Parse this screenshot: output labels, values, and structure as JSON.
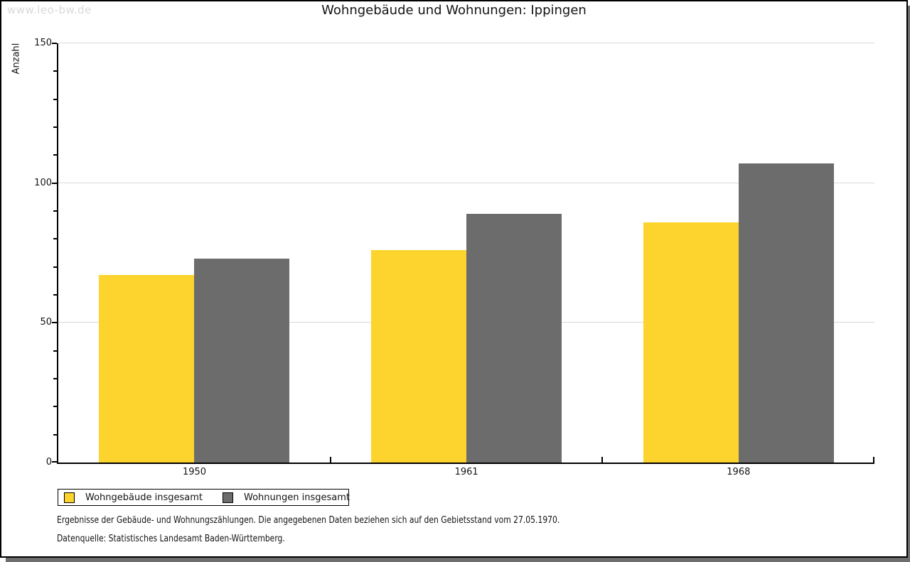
{
  "watermark": "www.leo-bw.de",
  "chart_data": {
    "type": "bar",
    "title": "Wohngebäude und Wohnungen: Ippingen",
    "xlabel": "",
    "ylabel": "Anzahl",
    "categories": [
      "1950",
      "1961",
      "1968"
    ],
    "series": [
      {
        "name": "Wohngebäude insgesamt",
        "color": "#fcd42d",
        "values": [
          67,
          76,
          86
        ]
      },
      {
        "name": "Wohnungen insgesamt",
        "color": "#6c6c6c",
        "values": [
          73,
          89,
          107
        ]
      }
    ],
    "ylim": [
      0,
      150
    ],
    "yticks": [
      0,
      50,
      100,
      150
    ],
    "minor_tick_step": 10,
    "grid": true,
    "gridline_color": "#d9d9d9",
    "legend_position": "bottom-left"
  },
  "footer": {
    "line1": "Ergebnisse der Gebäude- und Wohnungszählungen. Die angegebenen Daten beziehen sich auf den Gebietsstand vom 27.05.1970.",
    "line2": "Datenquelle: Statistisches Landesamt Baden-Württemberg."
  }
}
